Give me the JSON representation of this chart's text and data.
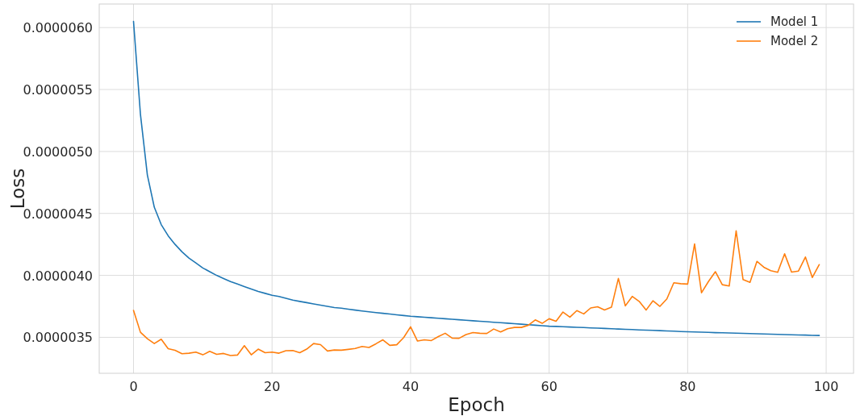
{
  "chart_data": {
    "type": "line",
    "xlabel": "Epoch",
    "ylabel": "Loss",
    "x": [
      0,
      1,
      2,
      3,
      4,
      5,
      6,
      7,
      8,
      9,
      10,
      11,
      12,
      13,
      14,
      15,
      16,
      17,
      18,
      19,
      20,
      21,
      22,
      23,
      24,
      25,
      26,
      27,
      28,
      29,
      30,
      31,
      32,
      33,
      34,
      35,
      36,
      37,
      38,
      39,
      40,
      41,
      42,
      43,
      44,
      45,
      46,
      47,
      48,
      49,
      50,
      51,
      52,
      53,
      54,
      55,
      56,
      57,
      58,
      59,
      60,
      61,
      62,
      63,
      64,
      65,
      66,
      67,
      68,
      69,
      70,
      71,
      72,
      73,
      74,
      75,
      76,
      77,
      78,
      79,
      80,
      81,
      82,
      83,
      84,
      85,
      86,
      87,
      88,
      89,
      90,
      91,
      92,
      93,
      94,
      95,
      96,
      97,
      98,
      99
    ],
    "series": [
      {
        "name": "Model 1",
        "color": "#1f77b4",
        "values": [
          6.05e-06,
          5.3e-06,
          4.81e-06,
          4.55e-06,
          4.41e-06,
          4.32e-06,
          4.25e-06,
          4.19e-06,
          4.14e-06,
          4.1e-06,
          4.06e-06,
          4.03e-06,
          4e-06,
          3.975e-06,
          3.95e-06,
          3.93e-06,
          3.91e-06,
          3.89e-06,
          3.87e-06,
          3.855e-06,
          3.84e-06,
          3.83e-06,
          3.815e-06,
          3.8e-06,
          3.79e-06,
          3.78e-06,
          3.77e-06,
          3.76e-06,
          3.75e-06,
          3.74e-06,
          3.735e-06,
          3.727e-06,
          3.72e-06,
          3.713e-06,
          3.706e-06,
          3.7e-06,
          3.694e-06,
          3.688e-06,
          3.682e-06,
          3.676e-06,
          3.67e-06,
          3.666e-06,
          3.662e-06,
          3.658e-06,
          3.654e-06,
          3.65e-06,
          3.646e-06,
          3.642e-06,
          3.638e-06,
          3.634e-06,
          3.63e-06,
          3.626e-06,
          3.622e-06,
          3.618e-06,
          3.614e-06,
          3.61e-06,
          3.606e-06,
          3.602e-06,
          3.598e-06,
          3.594e-06,
          3.59e-06,
          3.588e-06,
          3.586e-06,
          3.583e-06,
          3.581e-06,
          3.579e-06,
          3.576e-06,
          3.574e-06,
          3.572e-06,
          3.569e-06,
          3.567e-06,
          3.565e-06,
          3.563e-06,
          3.56e-06,
          3.558e-06,
          3.556e-06,
          3.554e-06,
          3.552e-06,
          3.55e-06,
          3.547e-06,
          3.545e-06,
          3.543e-06,
          3.542e-06,
          3.54e-06,
          3.538e-06,
          3.537e-06,
          3.535e-06,
          3.534e-06,
          3.532e-06,
          3.53e-06,
          3.529e-06,
          3.527e-06,
          3.526e-06,
          3.524e-06,
          3.522e-06,
          3.521e-06,
          3.519e-06,
          3.518e-06,
          3.516e-06,
          3.515e-06
        ]
      },
      {
        "name": "Model 2",
        "color": "#ff7f0e",
        "values": [
          3.717e-06,
          3.541e-06,
          3.489e-06,
          3.45e-06,
          3.485e-06,
          3.409e-06,
          3.396e-06,
          3.368e-06,
          3.372e-06,
          3.381e-06,
          3.359e-06,
          3.387e-06,
          3.363e-06,
          3.37e-06,
          3.353e-06,
          3.357e-06,
          3.433e-06,
          3.359e-06,
          3.405e-06,
          3.376e-06,
          3.381e-06,
          3.372e-06,
          3.392e-06,
          3.394e-06,
          3.376e-06,
          3.405e-06,
          3.45e-06,
          3.441e-06,
          3.39e-06,
          3.398e-06,
          3.396e-06,
          3.403e-06,
          3.41e-06,
          3.426e-06,
          3.418e-06,
          3.448e-06,
          3.48e-06,
          3.435e-06,
          3.44e-06,
          3.498e-06,
          3.585e-06,
          3.47e-06,
          3.48e-06,
          3.474e-06,
          3.506e-06,
          3.533e-06,
          3.494e-06,
          3.492e-06,
          3.522e-06,
          3.539e-06,
          3.533e-06,
          3.531e-06,
          3.567e-06,
          3.543e-06,
          3.569e-06,
          3.58e-06,
          3.58e-06,
          3.598e-06,
          3.641e-06,
          3.613e-06,
          3.65e-06,
          3.63e-06,
          3.704e-06,
          3.663e-06,
          3.716e-06,
          3.689e-06,
          3.737e-06,
          3.747e-06,
          3.721e-06,
          3.743e-06,
          3.975e-06,
          3.754e-06,
          3.83e-06,
          3.79e-06,
          3.72e-06,
          3.795e-06,
          3.75e-06,
          3.81e-06,
          3.94e-06,
          3.933e-06,
          3.93e-06,
          4.254e-06,
          3.86e-06,
          3.95e-06,
          4.03e-06,
          3.925e-06,
          3.914e-06,
          4.36e-06,
          3.966e-06,
          3.944e-06,
          4.113e-06,
          4.066e-06,
          4.038e-06,
          4.025e-06,
          4.174e-06,
          4.027e-06,
          4.035e-06,
          4.148e-06,
          3.983e-06,
          4.087e-06
        ]
      }
    ],
    "xlim": [
      -4.95,
      103.95
    ],
    "ylim": [
      3.21e-06,
      6.19e-06
    ],
    "xticks": [
      0,
      20,
      40,
      60,
      80,
      100
    ],
    "yticks": [
      {
        "value": 3.5e-06,
        "label": "0.0000035"
      },
      {
        "value": 4e-06,
        "label": "0.0000040"
      },
      {
        "value": 4.5e-06,
        "label": "0.0000045"
      },
      {
        "value": 5e-06,
        "label": "0.0000050"
      },
      {
        "value": 5.5e-06,
        "label": "0.0000055"
      },
      {
        "value": 6e-06,
        "label": "0.0000060"
      }
    ],
    "grid": true,
    "legend": "top right",
    "marker": "none",
    "line_style": "solid"
  }
}
